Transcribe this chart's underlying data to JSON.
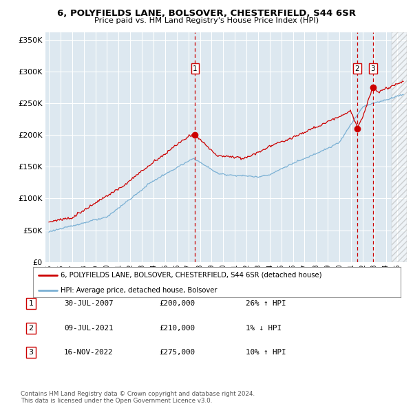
{
  "title": "6, POLYFIELDS LANE, BOLSOVER, CHESTERFIELD, S44 6SR",
  "subtitle": "Price paid vs. HM Land Registry's House Price Index (HPI)",
  "ytick_values": [
    0,
    50000,
    100000,
    150000,
    200000,
    250000,
    300000,
    350000
  ],
  "ylim": [
    0,
    362000
  ],
  "legend_line1": "6, POLYFIELDS LANE, BOLSOVER, CHESTERFIELD, S44 6SR (detached house)",
  "legend_line2": "HPI: Average price, detached house, Bolsover",
  "sale1_label": "1",
  "sale1_date": "30-JUL-2007",
  "sale1_price": "£200,000",
  "sale1_hpi": "26% ↑ HPI",
  "sale2_label": "2",
  "sale2_date": "09-JUL-2021",
  "sale2_price": "£210,000",
  "sale2_hpi": "1% ↓ HPI",
  "sale3_label": "3",
  "sale3_date": "16-NOV-2022",
  "sale3_price": "£275,000",
  "sale3_hpi": "10% ↑ HPI",
  "footer": "Contains HM Land Registry data © Crown copyright and database right 2024.\nThis data is licensed under the Open Government Licence v3.0.",
  "line_color_red": "#cc0000",
  "line_color_blue": "#7ab0d4",
  "bg_plot_color": "#dde8f0",
  "background_color": "#ffffff",
  "sale1_x": 2007.58,
  "sale2_x": 2021.52,
  "sale3_x": 2022.88,
  "sale1_y": 200000,
  "sale2_y": 210000,
  "sale3_y": 275000,
  "xmin": 1994.7,
  "xmax": 2025.8
}
